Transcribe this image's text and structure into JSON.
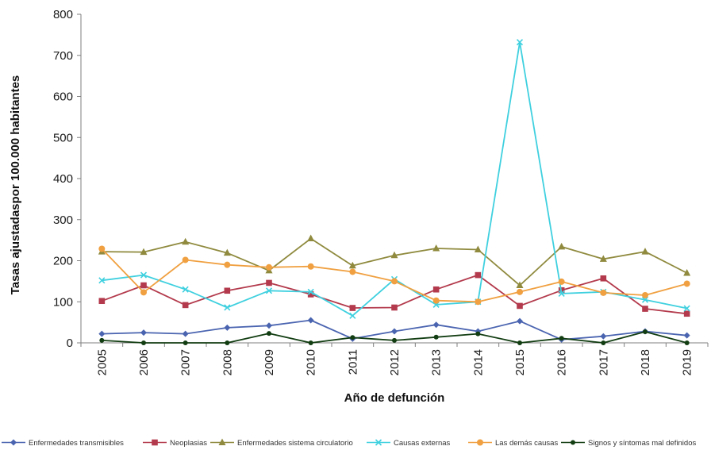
{
  "chart_data": {
    "type": "line",
    "title": "",
    "xlabel": "Año de defunción",
    "ylabel": "Tasas ajustadaspor 100.000 habitantes",
    "ylim": [
      0,
      800
    ],
    "yticks": [
      0,
      100,
      200,
      300,
      400,
      500,
      600,
      700,
      800
    ],
    "grid": false,
    "legend_position": "bottom",
    "categories": [
      "2005",
      "2006",
      "2007",
      "2008",
      "2009",
      "2010",
      "2011",
      "2012",
      "2013",
      "2014",
      "2015",
      "2016",
      "2017",
      "2018",
      "2019"
    ],
    "series": [
      {
        "name": "Enfermedades transmisibles",
        "color": "#4a64b0",
        "marker": "diamond",
        "values": [
          22,
          25,
          22,
          37,
          42,
          55,
          10,
          28,
          44,
          28,
          53,
          8,
          16,
          28,
          18
        ]
      },
      {
        "name": "Neoplasias",
        "color": "#b33a4c",
        "marker": "square",
        "values": [
          102,
          140,
          92,
          127,
          146,
          118,
          85,
          86,
          130,
          165,
          90,
          128,
          157,
          83,
          71
        ]
      },
      {
        "name": "Enfermedades sistema circulatorio",
        "color": "#8f8a3e",
        "marker": "triangle",
        "values": [
          222,
          221,
          246,
          219,
          176,
          254,
          188,
          213,
          230,
          227,
          140,
          234,
          204,
          222,
          170
        ]
      },
      {
        "name": "Causas externas",
        "color": "#3fd0df",
        "marker": "x",
        "values": [
          152,
          165,
          130,
          86,
          127,
          124,
          66,
          155,
          93,
          100,
          732,
          120,
          124,
          105,
          84
        ]
      },
      {
        "name": "Las demás causas",
        "color": "#f0a040",
        "marker": "circle",
        "values": [
          229,
          123,
          202,
          190,
          184,
          186,
          173,
          150,
          103,
          100,
          124,
          149,
          122,
          116,
          144
        ]
      },
      {
        "name": "Signos y síntomas mal definidos",
        "color": "#123d12",
        "marker": "dot",
        "values": [
          6,
          0,
          0,
          0,
          23,
          0,
          13,
          6,
          14,
          22,
          0,
          11,
          0,
          27,
          0
        ]
      }
    ]
  }
}
